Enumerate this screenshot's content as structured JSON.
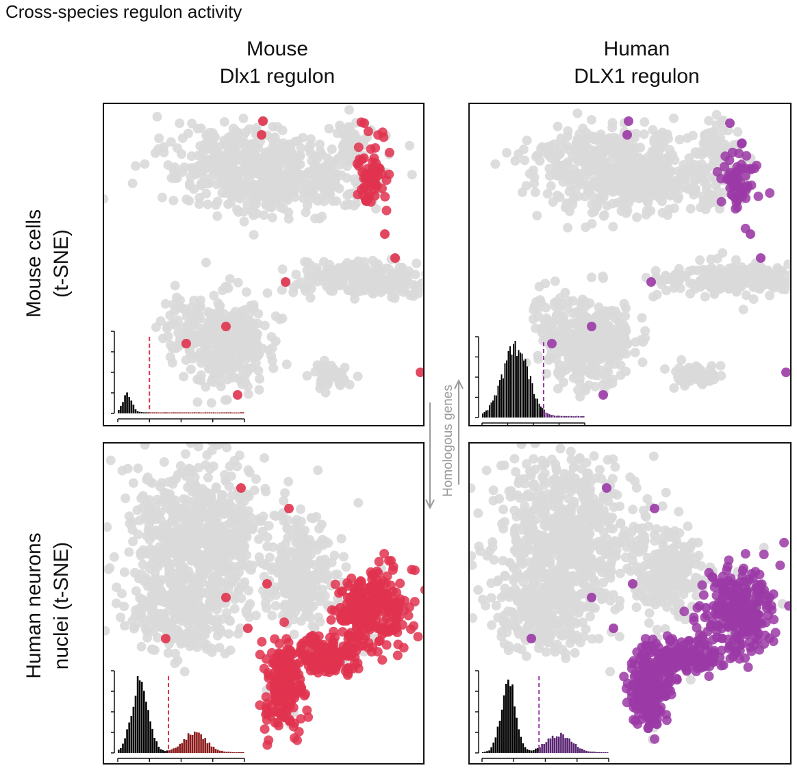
{
  "figure": {
    "title": "Cross-species regulon activity",
    "columns": [
      "Mouse\nDlx1 regulon",
      "Human\nDLX1 regulon"
    ],
    "column_lines": [
      [
        "Mouse",
        "Dlx1 regulon"
      ],
      [
        "Human",
        "DLX1 regulon"
      ]
    ],
    "rows": [
      [
        "Mouse cells",
        "(t-SNE)"
      ],
      [
        "Human neurons",
        "nuclei (t-SNE)"
      ]
    ],
    "arrow_label": "Homologous genes"
  },
  "colors": {
    "inactive": "#d9d9d9",
    "mouse_regulon": "#e0334f",
    "human_regulon": "#9b3aa6",
    "mouse_hist_active": "#8b1a1a",
    "human_hist_active": "#5a2673",
    "hist_inactive": "#000000",
    "arrow": "#9a9a9a"
  },
  "chart_data": [
    {
      "type": "scatter",
      "panel": "Mouse cells (t-SNE) – Mouse Dlx1 regulon",
      "embedding": "mouse",
      "highlight_color": "mouse_regulon",
      "active_cluster": "upper-right cluster",
      "inset_histogram": {
        "threshold": 0.25,
        "inactive_peak": 0.07,
        "active_tail": "near-flat"
      }
    },
    {
      "type": "scatter",
      "panel": "Mouse cells (t-SNE) – Human DLX1 regulon",
      "embedding": "mouse",
      "highlight_color": "human_regulon",
      "active_cluster": "upper-right cluster",
      "inset_histogram": {
        "threshold": 0.6,
        "inactive_peak": 0.35,
        "active_tail": "near-flat"
      }
    },
    {
      "type": "scatter",
      "panel": "Human neurons nuclei (t-SNE) – Mouse Dlx1 regulon",
      "embedding": "human",
      "highlight_color": "mouse_regulon",
      "active_cluster": "lower-right cluster",
      "inset_histogram": {
        "threshold": 0.38,
        "inactive_peak": 0.2,
        "active_tail": "second mode ~0.6"
      }
    },
    {
      "type": "scatter",
      "panel": "Human neurons nuclei (t-SNE) – Human DLX1 regulon",
      "embedding": "human",
      "highlight_color": "human_regulon",
      "active_cluster": "lower-right cluster",
      "inset_histogram": {
        "threshold": 0.45,
        "inactive_peak": 0.2,
        "active_tail": "second mode ~0.65"
      }
    }
  ]
}
